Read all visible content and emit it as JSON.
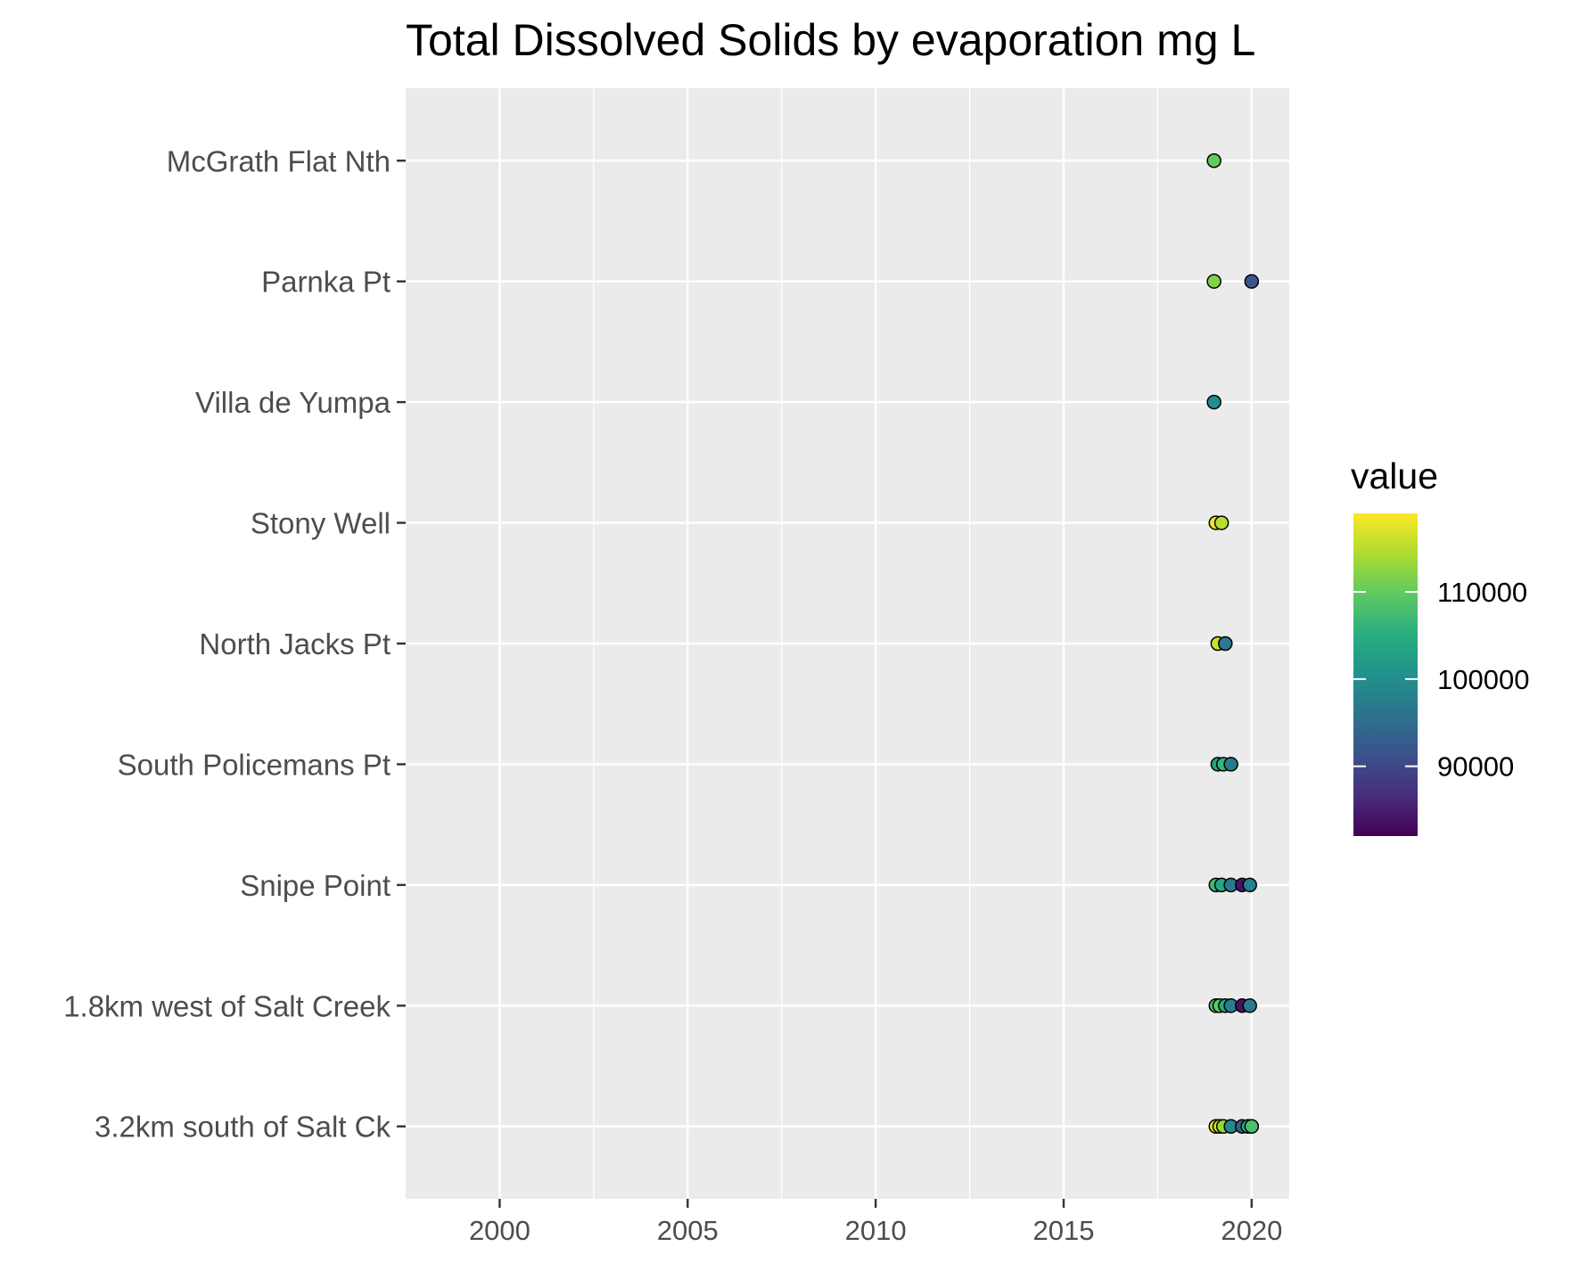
{
  "chart_data": {
    "type": "scatter",
    "title": "Total Dissolved Solids by evaporation mg L",
    "xlabel": "",
    "ylabel": "",
    "xlim": [
      1997.5,
      2021.0
    ],
    "x_ticks": [
      2000,
      2005,
      2010,
      2015,
      2020
    ],
    "grid": true,
    "sites": [
      "3.2km south of Salt Ck",
      "1.8km west of Salt Creek",
      "Snipe Point",
      "South Policemans Pt",
      "North Jacks Pt",
      "Stony Well",
      "Villa de Yumpa",
      "Parnka Pt",
      "McGrath Flat Nth"
    ],
    "color_scale": {
      "title": "value",
      "palette": "viridis",
      "min": 82000,
      "max": 119000,
      "ticks": [
        90000,
        100000,
        110000
      ],
      "tick_labels": [
        "90000",
        "100000",
        "110000"
      ],
      "placement": "right"
    },
    "points": [
      {
        "site": "3.2km south of Salt Ck",
        "x": 2019.05,
        "value": 118000
      },
      {
        "site": "3.2km south of Salt Ck",
        "x": 2019.15,
        "value": 116000
      },
      {
        "site": "3.2km south of Salt Ck",
        "x": 2019.25,
        "value": 113000
      },
      {
        "site": "3.2km south of Salt Ck",
        "x": 2019.45,
        "value": 99000
      },
      {
        "site": "3.2km south of Salt Ck",
        "x": 2019.75,
        "value": 93000
      },
      {
        "site": "3.2km south of Salt Ck",
        "x": 2019.9,
        "value": 105000
      },
      {
        "site": "3.2km south of Salt Ck",
        "x": 2020.0,
        "value": 108000
      },
      {
        "site": "1.8km west of Salt Creek",
        "x": 2019.05,
        "value": 108000
      },
      {
        "site": "1.8km west of Salt Creek",
        "x": 2019.15,
        "value": 110000
      },
      {
        "site": "1.8km west of Salt Creek",
        "x": 2019.3,
        "value": 104000
      },
      {
        "site": "1.8km west of Salt Creek",
        "x": 2019.45,
        "value": 98000
      },
      {
        "site": "1.8km west of Salt Creek",
        "x": 2019.75,
        "value": 84000
      },
      {
        "site": "1.8km west of Salt Creek",
        "x": 2019.95,
        "value": 97000
      },
      {
        "site": "Snipe Point",
        "x": 2019.05,
        "value": 107000
      },
      {
        "site": "Snipe Point",
        "x": 2019.2,
        "value": 104000
      },
      {
        "site": "Snipe Point",
        "x": 2019.45,
        "value": 97000
      },
      {
        "site": "Snipe Point",
        "x": 2019.75,
        "value": 84000
      },
      {
        "site": "Snipe Point",
        "x": 2019.95,
        "value": 98000
      },
      {
        "site": "South Policemans Pt",
        "x": 2019.1,
        "value": 103000
      },
      {
        "site": "South Policemans Pt",
        "x": 2019.25,
        "value": 106000
      },
      {
        "site": "South Policemans Pt",
        "x": 2019.45,
        "value": 97000
      },
      {
        "site": "North Jacks Pt",
        "x": 2019.1,
        "value": 116000
      },
      {
        "site": "North Jacks Pt",
        "x": 2019.3,
        "value": 97000
      },
      {
        "site": "Stony Well",
        "x": 2019.05,
        "value": 118000
      },
      {
        "site": "Stony Well",
        "x": 2019.2,
        "value": 115000
      },
      {
        "site": "Villa de Yumpa",
        "x": 2019.0,
        "value": 100000
      },
      {
        "site": "Parnka Pt",
        "x": 2019.0,
        "value": 112000
      },
      {
        "site": "Parnka Pt",
        "x": 2020.0,
        "value": 92000
      },
      {
        "site": "McGrath Flat Nth",
        "x": 2019.0,
        "value": 110000
      }
    ]
  }
}
